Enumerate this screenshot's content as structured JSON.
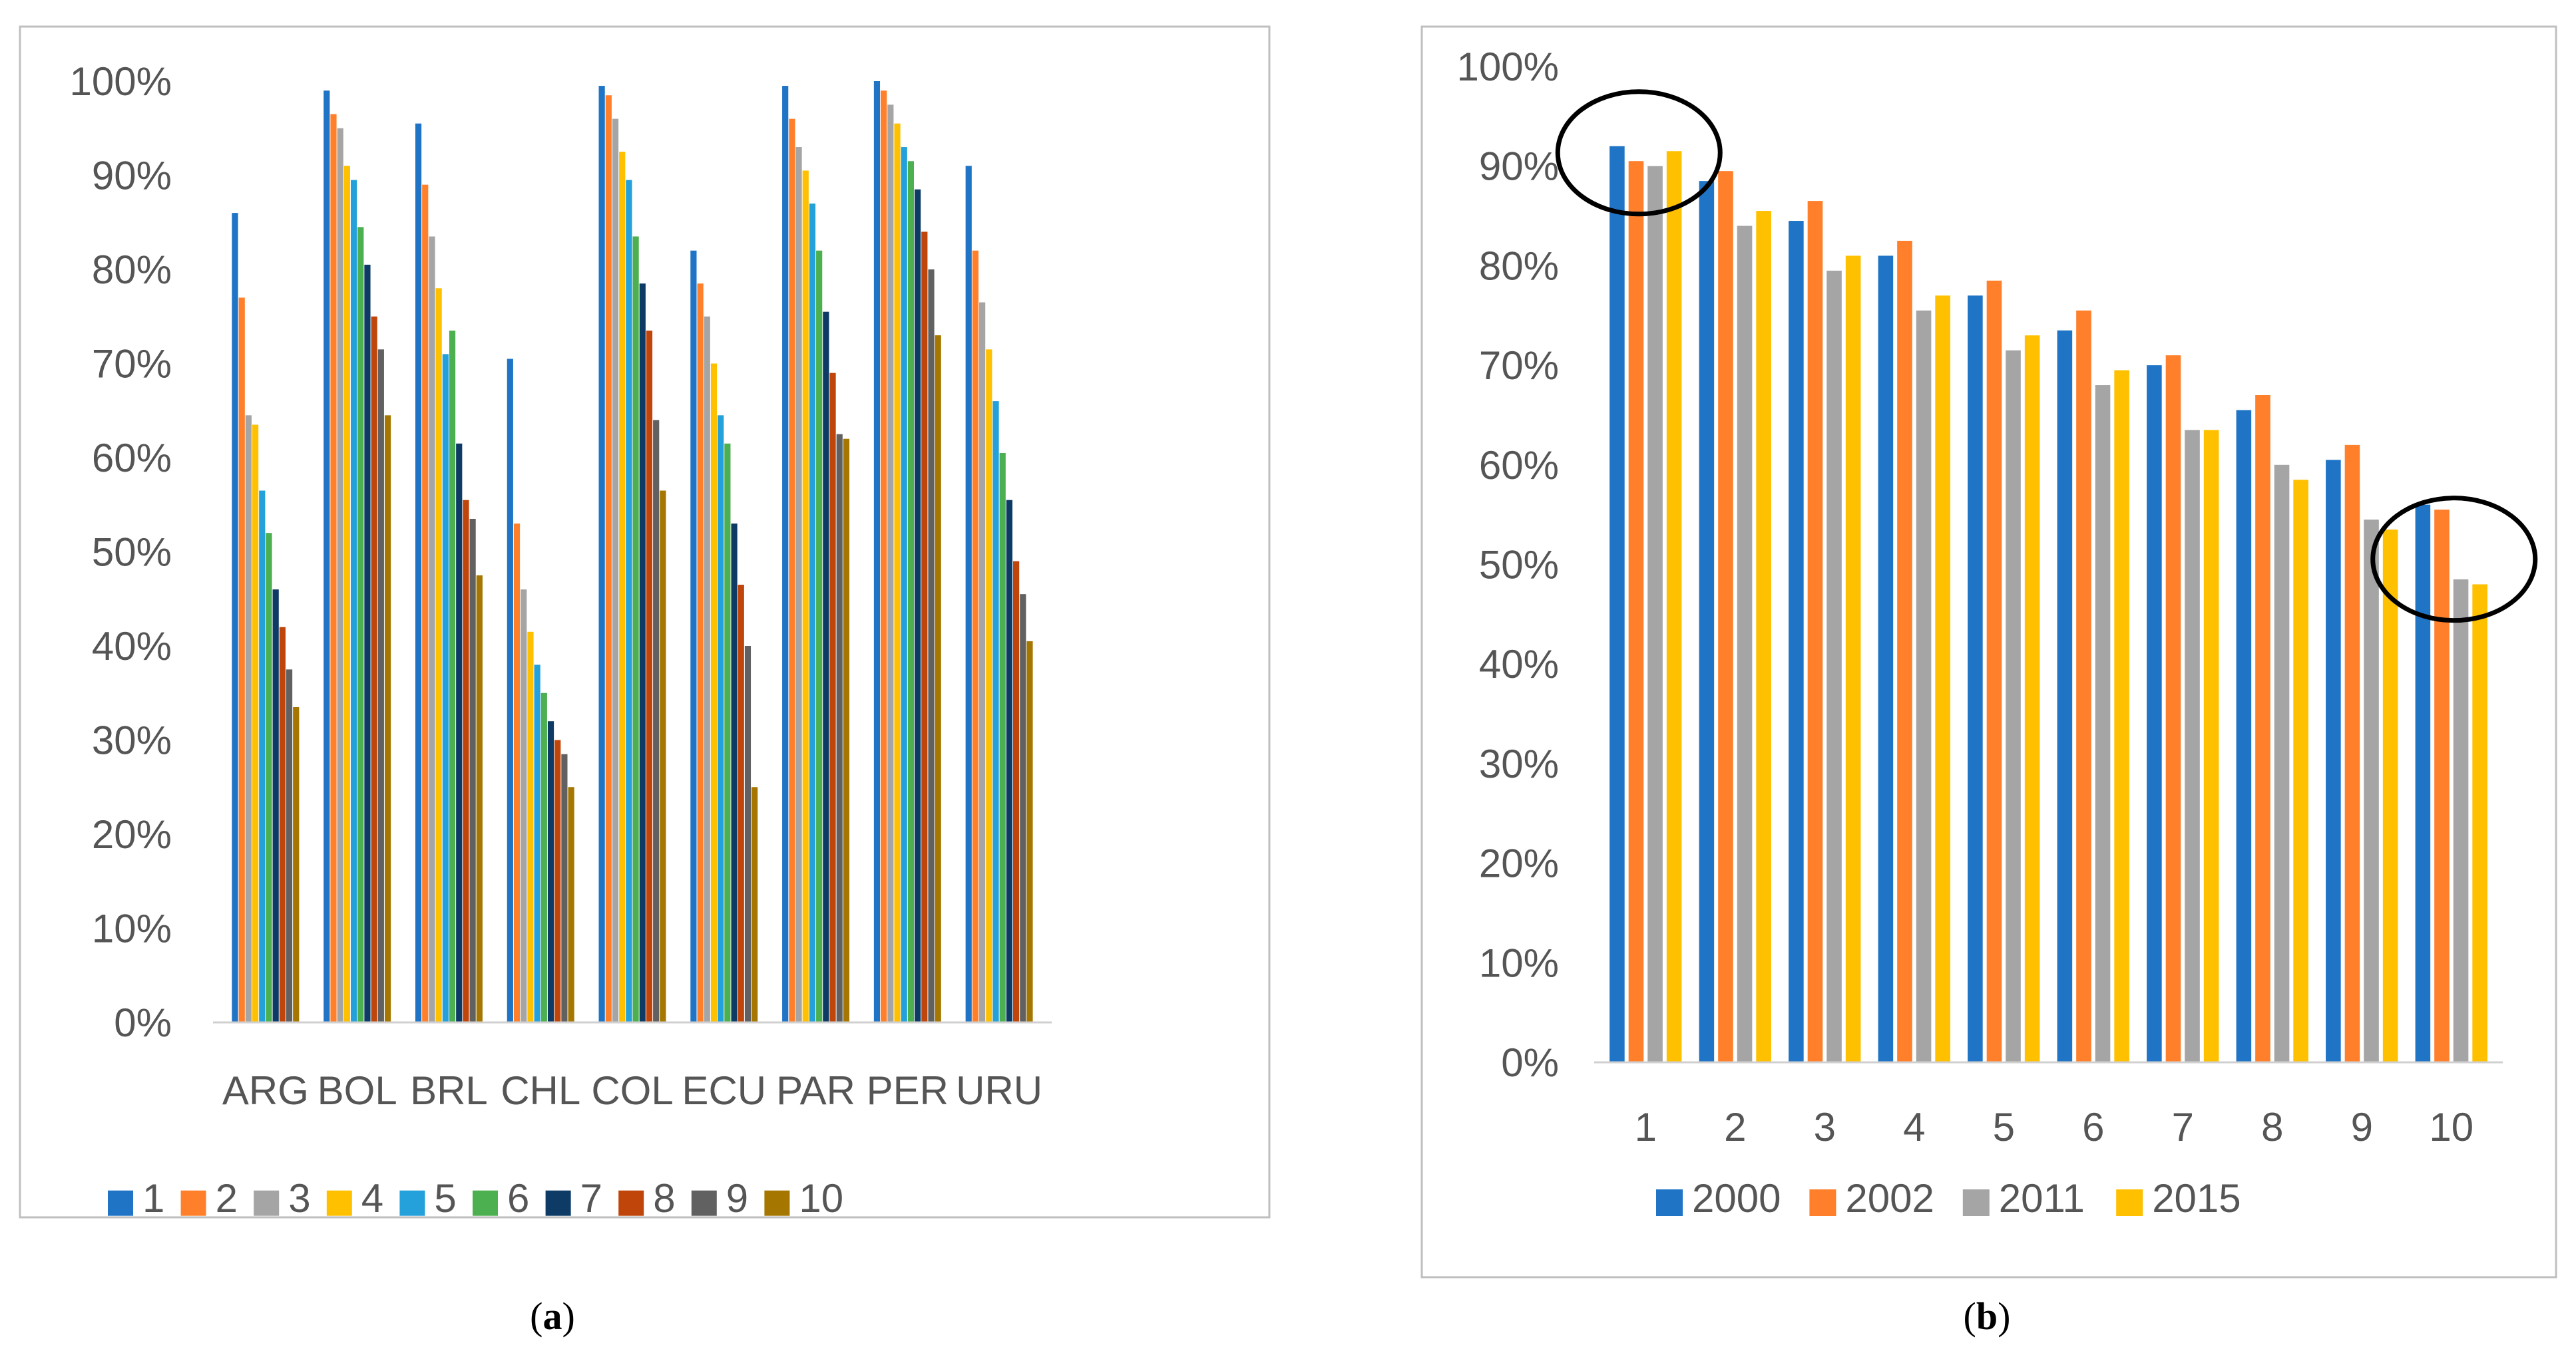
{
  "colors": {
    "deciles": [
      "#1F74C6",
      "#FF7F2A",
      "#A5A5A5",
      "#FFC000",
      "#24A0DA",
      "#4CAF50",
      "#0D3B66",
      "#C0450A",
      "#616161",
      "#A67700"
    ],
    "years": [
      "#1F74C6",
      "#FF7F2A",
      "#A5A5A5",
      "#FFC000"
    ],
    "axis_text": "#555555",
    "frame": "#BFBFBF"
  },
  "captions": {
    "a": "a",
    "b": "b"
  },
  "chart_data": [
    {
      "id": "a",
      "type": "bar",
      "title": "",
      "xlabel": "",
      "ylabel": "",
      "ylim": [
        0,
        100
      ],
      "y_ticks": [
        "0%",
        "10%",
        "20%",
        "30%",
        "40%",
        "50%",
        "60%",
        "70%",
        "80%",
        "90%",
        "100%"
      ],
      "categories": [
        "ARG",
        "BOL",
        "BRL",
        "CHL",
        "COL",
        "ECU",
        "PAR",
        "PER",
        "URU"
      ],
      "legend_position": "bottom",
      "grid": false,
      "series": [
        {
          "name": "1",
          "values": [
            86,
            99,
            95.5,
            70.5,
            99.5,
            82,
            99.5,
            100,
            91
          ]
        },
        {
          "name": "2",
          "values": [
            77,
            96.5,
            89,
            53,
            98.5,
            78.5,
            96,
            99,
            82
          ]
        },
        {
          "name": "3",
          "values": [
            64.5,
            95,
            83.5,
            46,
            96,
            75,
            93,
            97.5,
            76.5
          ]
        },
        {
          "name": "4",
          "values": [
            63.5,
            91,
            78,
            41.5,
            92.5,
            70,
            90.5,
            95.5,
            71.5
          ]
        },
        {
          "name": "5",
          "values": [
            56.5,
            89.5,
            71,
            38,
            89.5,
            64.5,
            87,
            93,
            66
          ]
        },
        {
          "name": "6",
          "values": [
            52,
            84.5,
            73.5,
            35,
            83.5,
            61.5,
            82,
            91.5,
            60.5
          ]
        },
        {
          "name": "7",
          "values": [
            46,
            80.5,
            61.5,
            32,
            78.5,
            53,
            75.5,
            88.5,
            55.5
          ]
        },
        {
          "name": "8",
          "values": [
            42,
            75,
            55.5,
            30,
            73.5,
            46.5,
            69,
            84,
            49
          ]
        },
        {
          "name": "9",
          "values": [
            37.5,
            71.5,
            53.5,
            28.5,
            64,
            40,
            62.5,
            80,
            45.5
          ]
        },
        {
          "name": "10",
          "values": [
            33.5,
            64.5,
            47.5,
            25,
            56.5,
            25,
            62,
            73,
            40.5
          ]
        }
      ]
    },
    {
      "id": "b",
      "type": "bar",
      "title": "",
      "xlabel": "",
      "ylabel": "",
      "ylim": [
        0,
        100
      ],
      "y_ticks": [
        "0%",
        "10%",
        "20%",
        "30%",
        "40%",
        "50%",
        "60%",
        "70%",
        "80%",
        "90%",
        "100%"
      ],
      "categories": [
        "1",
        "2",
        "3",
        "4",
        "5",
        "6",
        "7",
        "8",
        "9",
        "10"
      ],
      "legend_position": "bottom",
      "grid": false,
      "highlighted_categories": [
        "1",
        "10"
      ],
      "series": [
        {
          "name": "2000",
          "values": [
            92,
            88.5,
            84.5,
            81,
            77,
            73.5,
            70,
            65.5,
            60.5,
            56
          ]
        },
        {
          "name": "2002",
          "values": [
            90.5,
            89.5,
            86.5,
            82.5,
            78.5,
            75.5,
            71,
            67,
            62,
            55.5
          ]
        },
        {
          "name": "2011",
          "values": [
            90,
            84,
            79.5,
            75.5,
            71.5,
            68,
            63.5,
            60,
            54.5,
            48.5
          ]
        },
        {
          "name": "2015",
          "values": [
            91.5,
            85.5,
            81,
            77,
            73,
            69.5,
            63.5,
            58.5,
            53.5,
            48
          ]
        }
      ]
    }
  ]
}
